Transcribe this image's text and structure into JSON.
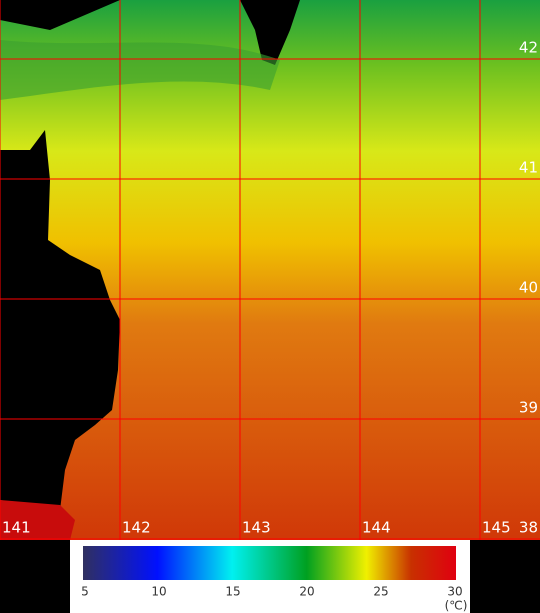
{
  "map": {
    "longitude_labels": [
      141,
      142,
      143,
      144,
      145
    ],
    "latitude_labels": [
      38,
      39,
      40,
      41,
      42
    ],
    "colorbar": {
      "lim": [
        5,
        30
      ],
      "ticks": [
        5,
        10,
        15,
        20,
        25,
        30
      ],
      "unit": "(℃)"
    }
  }
}
